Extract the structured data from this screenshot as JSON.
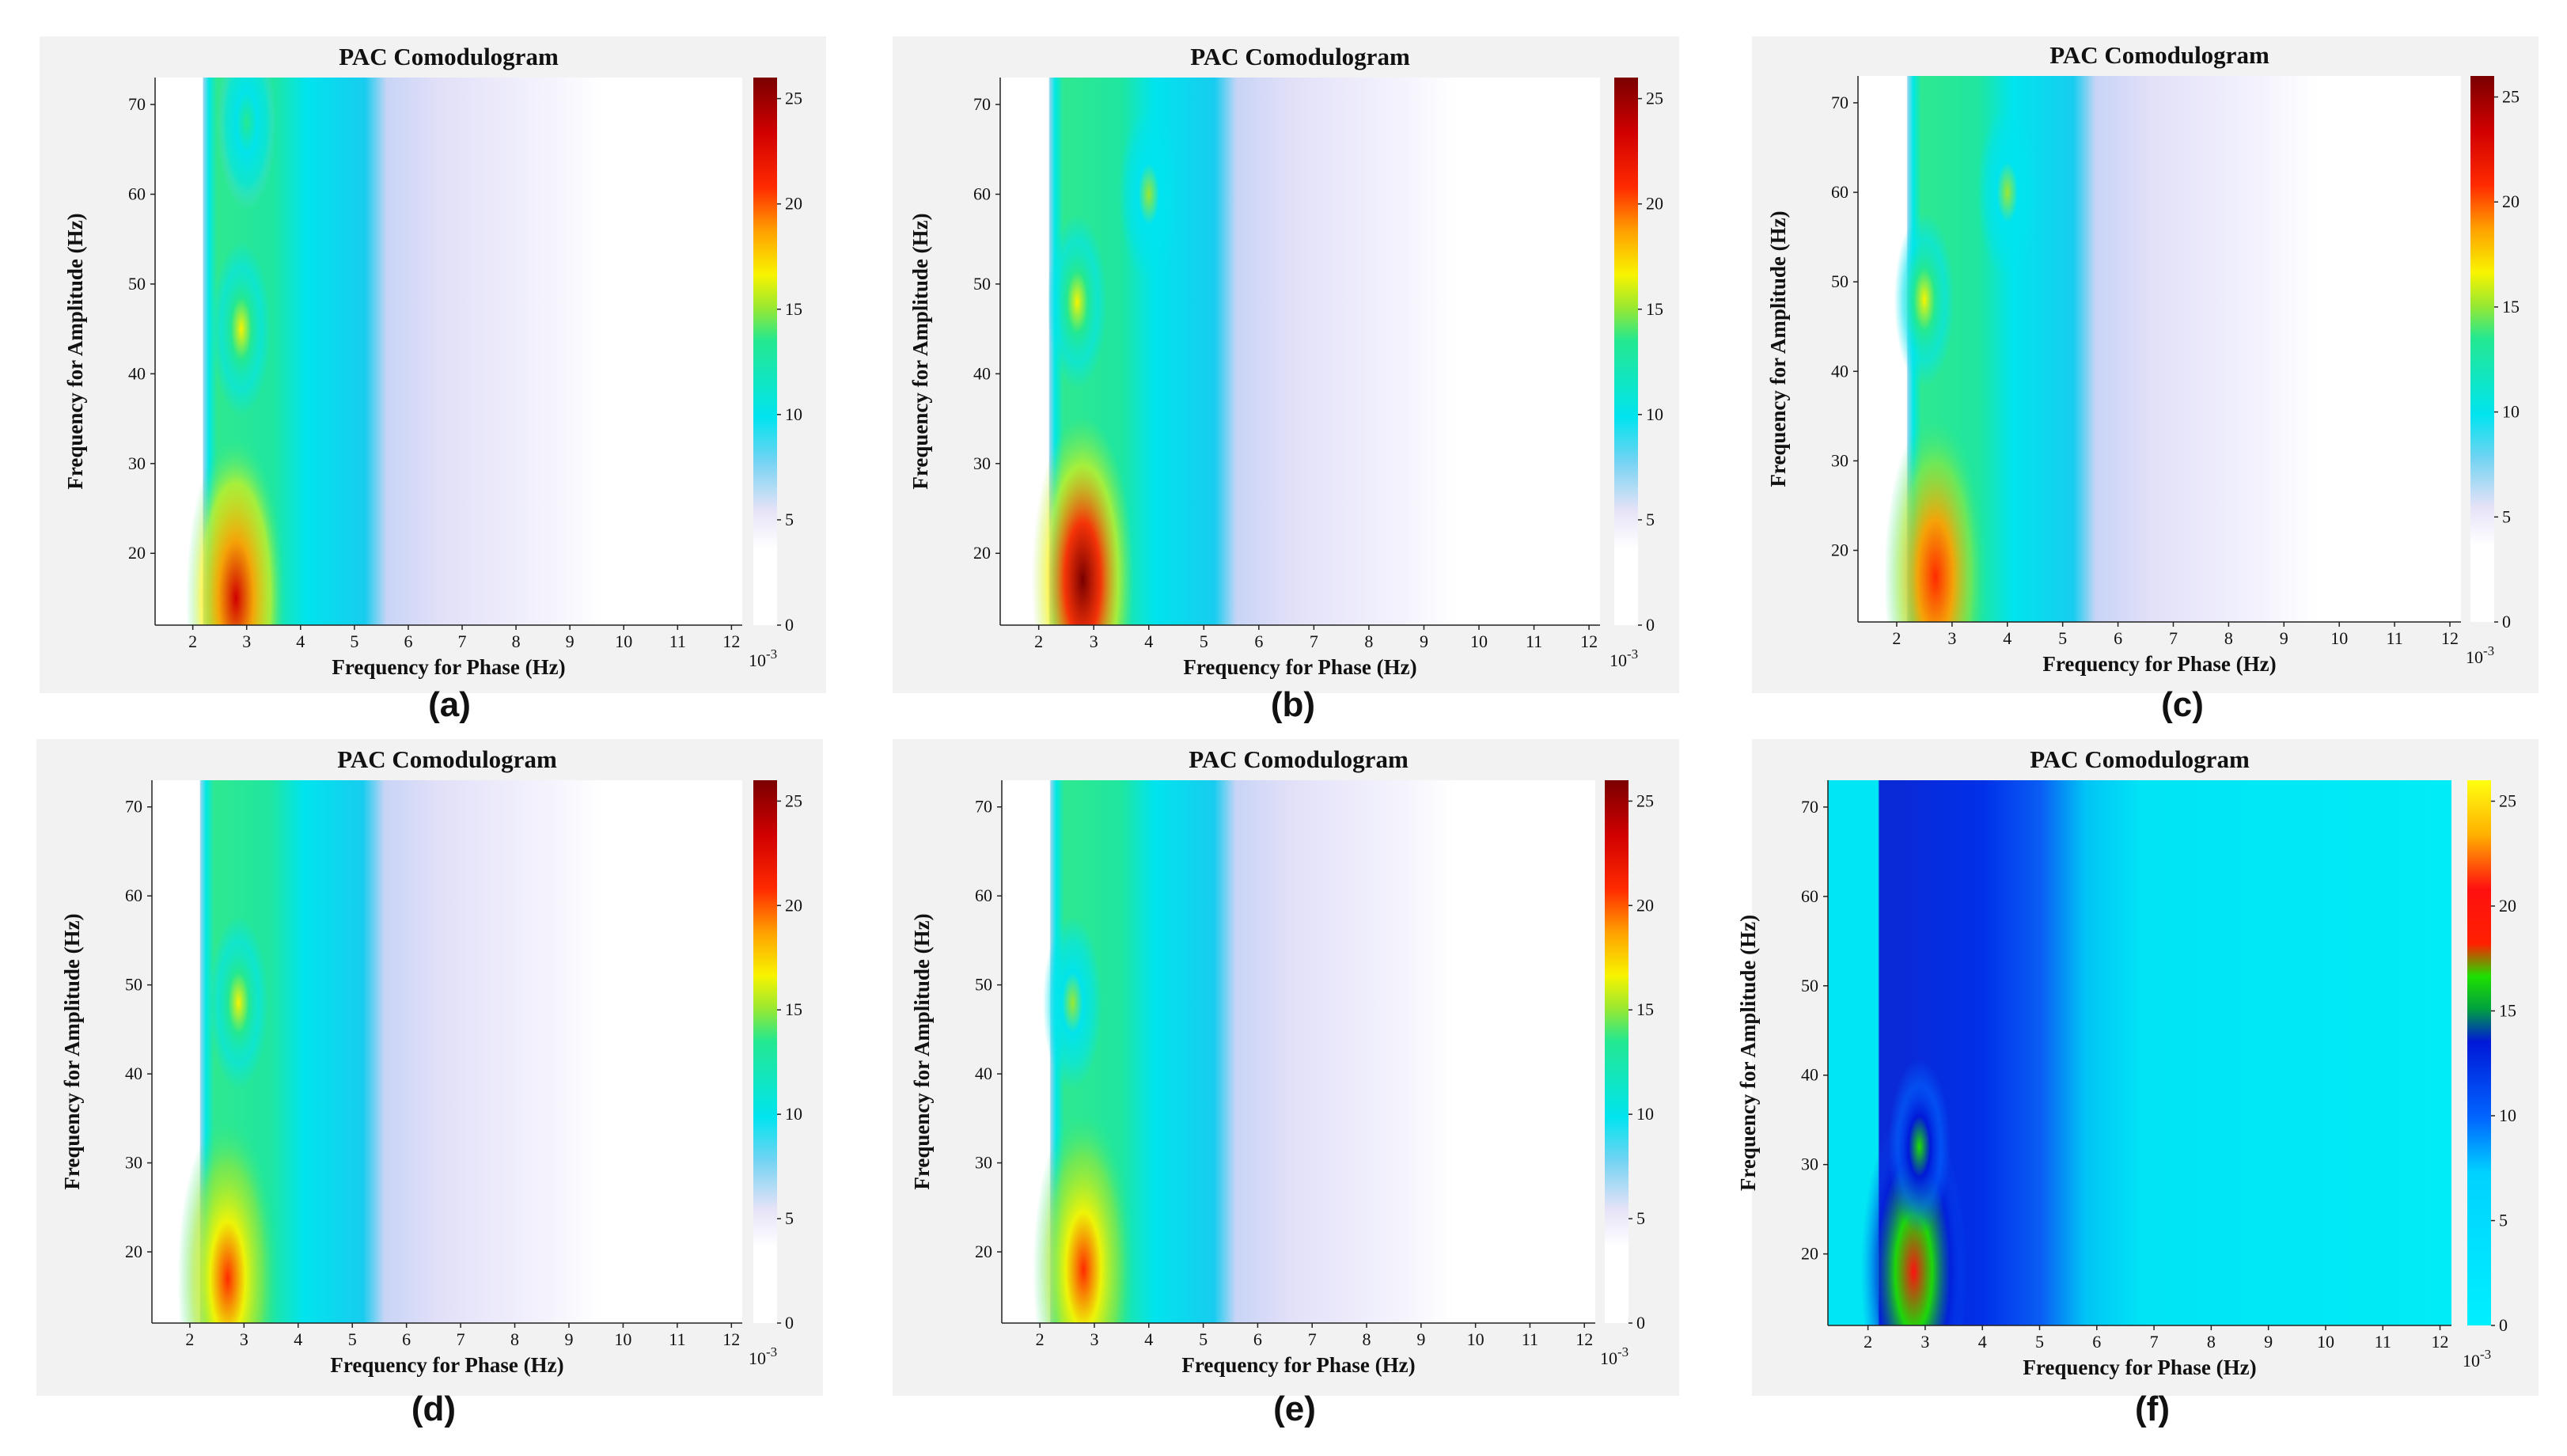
{
  "chart_data": [
    {
      "type": "heatmap",
      "caption": "(a)",
      "title": "PAC Comodulogram",
      "xlabel": "Frequency for Phase (Hz)",
      "ylabel": "Frequency for Amplitude (Hz)",
      "xlim": [
        1.3,
        12.2
      ],
      "ylim": [
        12,
        73
      ],
      "xticks": [
        2,
        3,
        4,
        5,
        6,
        7,
        8,
        9,
        10,
        11,
        12
      ],
      "yticks": [
        20,
        30,
        40,
        50,
        60,
        70
      ],
      "colorbar": {
        "ticks": [
          0,
          5,
          10,
          15,
          20,
          25
        ],
        "range": [
          0,
          26
        ],
        "multiplier": "10^-3",
        "colormap": "whitepurple-cyan-green-yellow-red-darkred"
      },
      "hotspots": [
        {
          "phase_hz": 2.8,
          "amp_hz": 15,
          "value": 24
        },
        {
          "phase_hz": 2.9,
          "amp_hz": 45,
          "value": 17
        },
        {
          "phase_hz": 3.0,
          "amp_hz": 68,
          "value": 15
        }
      ]
    },
    {
      "type": "heatmap",
      "caption": "(b)",
      "title": "PAC Comodulogram",
      "xlabel": "Frequency for Phase (Hz)",
      "ylabel": "Frequency for Amplitude (Hz)",
      "xlim": [
        1.3,
        12.2
      ],
      "ylim": [
        12,
        73
      ],
      "xticks": [
        2,
        3,
        4,
        5,
        6,
        7,
        8,
        9,
        10,
        11,
        12
      ],
      "yticks": [
        20,
        30,
        40,
        50,
        60,
        70
      ],
      "colorbar": {
        "ticks": [
          0,
          5,
          10,
          15,
          20,
          25
        ],
        "range": [
          0,
          26
        ],
        "multiplier": "10^-3",
        "colormap": "whitepurple-cyan-green-yellow-red-darkred"
      },
      "hotspots": [
        {
          "phase_hz": 2.8,
          "amp_hz": 17,
          "value": 26
        },
        {
          "phase_hz": 2.7,
          "amp_hz": 48,
          "value": 17
        },
        {
          "phase_hz": 4.0,
          "amp_hz": 60,
          "value": 16
        }
      ]
    },
    {
      "type": "heatmap",
      "caption": "(c)",
      "title": "PAC Comodulogram",
      "xlabel": "Frequency for Phase (Hz)",
      "ylabel": "Frequency for Amplitude (Hz)",
      "xlim": [
        1.3,
        12.2
      ],
      "ylim": [
        12,
        73
      ],
      "xticks": [
        2,
        3,
        4,
        5,
        6,
        7,
        8,
        9,
        10,
        11,
        12
      ],
      "yticks": [
        20,
        30,
        40,
        50,
        60,
        70
      ],
      "colorbar": {
        "ticks": [
          0,
          5,
          10,
          15,
          20,
          25
        ],
        "range": [
          0,
          26
        ],
        "multiplier": "10^-3",
        "colormap": "whitepurple-cyan-green-yellow-red-darkred"
      },
      "hotspots": [
        {
          "phase_hz": 2.7,
          "amp_hz": 17,
          "value": 23
        },
        {
          "phase_hz": 2.5,
          "amp_hz": 48,
          "value": 17
        },
        {
          "phase_hz": 4.0,
          "amp_hz": 60,
          "value": 16
        }
      ]
    },
    {
      "type": "heatmap",
      "caption": "(d)",
      "title": "PAC Comodulogram",
      "xlabel": "Frequency for Phase (Hz)",
      "ylabel": "Frequency for Amplitude (Hz)",
      "xlim": [
        1.3,
        12.2
      ],
      "ylim": [
        12,
        73
      ],
      "xticks": [
        2,
        3,
        4,
        5,
        6,
        7,
        8,
        9,
        10,
        11,
        12
      ],
      "yticks": [
        20,
        30,
        40,
        50,
        60,
        70
      ],
      "colorbar": {
        "ticks": [
          0,
          5,
          10,
          15,
          20,
          25
        ],
        "range": [
          0,
          26
        ],
        "multiplier": "10^-3",
        "colormap": "whitepurple-cyan-green-yellow-red-darkred"
      },
      "hotspots": [
        {
          "phase_hz": 2.7,
          "amp_hz": 17,
          "value": 22
        },
        {
          "phase_hz": 2.9,
          "amp_hz": 48,
          "value": 17
        }
      ]
    },
    {
      "type": "heatmap",
      "caption": "(e)",
      "title": "PAC Comodulogram",
      "xlabel": "Frequency for Phase (Hz)",
      "ylabel": "Frequency for Amplitude (Hz)",
      "xlim": [
        1.3,
        12.2
      ],
      "ylim": [
        12,
        73
      ],
      "xticks": [
        2,
        3,
        4,
        5,
        6,
        7,
        8,
        9,
        10,
        11,
        12
      ],
      "yticks": [
        20,
        30,
        40,
        50,
        60,
        70
      ],
      "colorbar": {
        "ticks": [
          0,
          5,
          10,
          15,
          20,
          25
        ],
        "range": [
          0,
          26
        ],
        "multiplier": "10^-3",
        "colormap": "whitepurple-cyan-green-yellow-red-darkred"
      },
      "hotspots": [
        {
          "phase_hz": 2.8,
          "amp_hz": 18,
          "value": 22
        },
        {
          "phase_hz": 2.6,
          "amp_hz": 48,
          "value": 16
        }
      ]
    },
    {
      "type": "heatmap",
      "caption": "(f)",
      "title": "PAC Comodulogram",
      "xlabel": "Frequency for Phase (Hz)",
      "ylabel": "Frequency for Amplitude (Hz)",
      "xlim": [
        1.3,
        12.2
      ],
      "ylim": [
        12,
        73
      ],
      "xticks": [
        2,
        3,
        4,
        5,
        6,
        7,
        8,
        9,
        10,
        11,
        12
      ],
      "yticks": [
        20,
        30,
        40,
        50,
        60,
        70
      ],
      "colorbar": {
        "ticks": [
          0,
          5,
          10,
          15,
          20,
          25
        ],
        "range": [
          0,
          26
        ],
        "multiplier": "10^-3",
        "colormap": "cyan-blue-green-red-yellow"
      },
      "hotspots": [
        {
          "phase_hz": 2.8,
          "amp_hz": 18,
          "value": 21
        },
        {
          "phase_hz": 2.9,
          "amp_hz": 32,
          "value": 17
        }
      ]
    }
  ]
}
